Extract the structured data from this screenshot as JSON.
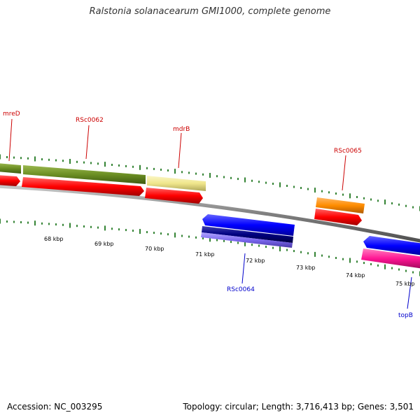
{
  "header": {
    "title": "Ralstonia solanacearum GMI1000, complete genome"
  },
  "footer": {
    "accession": "Accession: NC_003295",
    "summary": "Topology: circular; Length: 3,716,413 bp; Genes: 3,501"
  },
  "scale": {
    "unit_label_suffix": " kbp",
    "labels": [
      "68 kbp",
      "69 kbp",
      "70 kbp",
      "71 kbp",
      "72 kbp",
      "73 kbp",
      "74 kbp",
      "75 kbp"
    ]
  },
  "genes": [
    {
      "name": "mreD",
      "strand": "forward",
      "labeled": true,
      "label": "mreD"
    },
    {
      "name": "RSc0062",
      "strand": "forward",
      "labeled": true,
      "label": "RSc0062"
    },
    {
      "name": "mdrB",
      "strand": "forward",
      "labeled": true,
      "label": "mdrB"
    },
    {
      "name": "RSc0065",
      "strand": "forward",
      "labeled": true,
      "label": "RSc0065"
    },
    {
      "name": "RSc0064",
      "strand": "reverse",
      "labeled": true,
      "label": "RSc0064"
    },
    {
      "name": "topB",
      "strand": "reverse",
      "labeled": true,
      "label": "topB"
    }
  ],
  "colors": {
    "forward_label": "#cc0000",
    "reverse_label": "#0000cc",
    "cds_forward": "#ff0000",
    "cds_reverse": "#0000ff",
    "olive_gene": "#6b8e23",
    "khaki_gene": "#f0e68c",
    "orange_gene": "#ff8c00",
    "navy_gene": "#000080",
    "slate_gene": "#7b68ee",
    "pink_gene": "#ff1493",
    "backbone": "#808080",
    "tick": "#006400"
  }
}
